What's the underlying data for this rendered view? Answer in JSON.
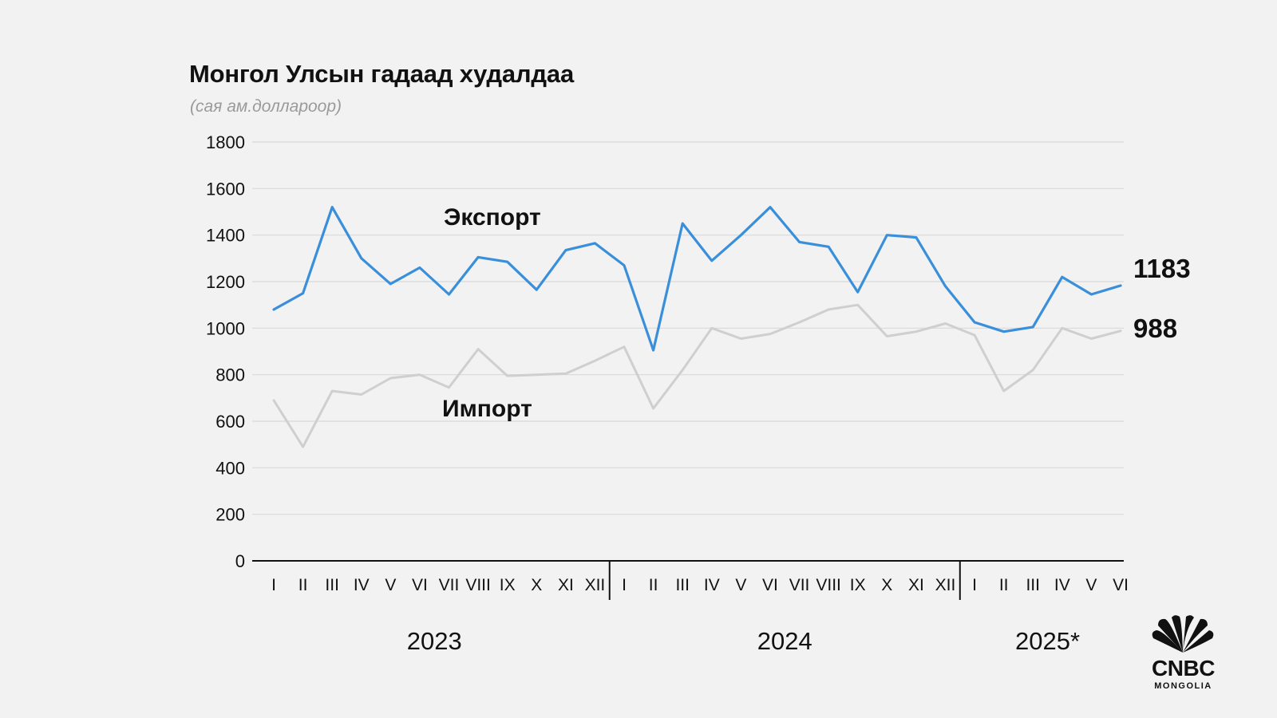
{
  "header": {
    "title": "Монгол Улсын гадаад худалдаа",
    "subtitle": "(сая ам.доллароор)"
  },
  "logo": {
    "brand": "CNBC",
    "sub": "MONGOLIA"
  },
  "colors": {
    "background": "#f2f2f2",
    "export": "#3a8fdb",
    "import": "#cfcfcf",
    "grid": "#d9d9d9",
    "axis": "#111111"
  },
  "chart_data": {
    "type": "line",
    "title": "Монгол Улсын гадаад худалдаа",
    "subtitle": "(сая ам.доллароор)",
    "categories": [
      "I",
      "II",
      "III",
      "IV",
      "V",
      "VI",
      "VII",
      "VIII",
      "IX",
      "X",
      "XI",
      "XII",
      "I",
      "II",
      "III",
      "IV",
      "V",
      "VI",
      "VII",
      "VIII",
      "IX",
      "X",
      "XI",
      "XII",
      "I",
      "II",
      "III",
      "IV",
      "V",
      "VI"
    ],
    "groups": [
      {
        "label": "2023",
        "start": 0,
        "end": 11
      },
      {
        "label": "2024",
        "start": 12,
        "end": 23
      },
      {
        "label": "2025*",
        "start": 24,
        "end": 29
      }
    ],
    "ylim": [
      0,
      1800
    ],
    "yticks": [
      0,
      200,
      400,
      600,
      800,
      1000,
      1200,
      1400,
      1600,
      1800
    ],
    "grid": true,
    "series": [
      {
        "name": "Экспорт",
        "color": "#3a8fdb",
        "end_label": "1183",
        "values": [
          1080,
          1150,
          1520,
          1300,
          1190,
          1260,
          1145,
          1305,
          1285,
          1165,
          1335,
          1365,
          1270,
          905,
          1450,
          1290,
          1400,
          1520,
          1370,
          1350,
          1155,
          1400,
          1390,
          1180,
          1025,
          985,
          1005,
          1220,
          1145,
          1183
        ]
      },
      {
        "name": "Импорт",
        "color": "#cfcfcf",
        "end_label": "988",
        "values": [
          690,
          490,
          730,
          715,
          785,
          800,
          745,
          910,
          795,
          800,
          805,
          860,
          920,
          655,
          820,
          1000,
          955,
          975,
          1025,
          1080,
          1100,
          965,
          985,
          1020,
          970,
          730,
          820,
          1000,
          955,
          988
        ]
      }
    ]
  }
}
